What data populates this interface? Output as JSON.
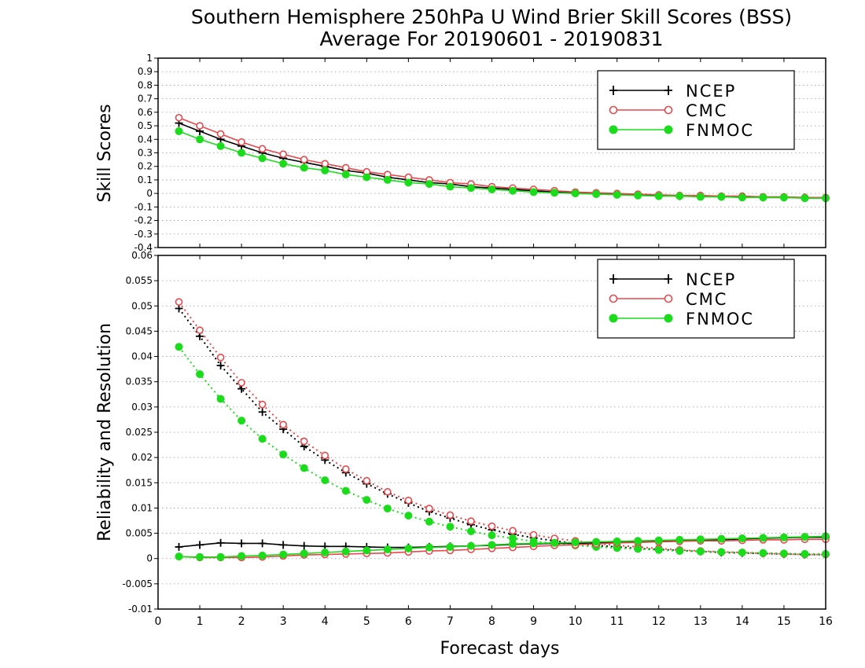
{
  "title_line1": "Southern Hemisphere 250hPa U Wind Brier Skill Scores (BSS)",
  "title_line2": "Average For 20190601 - 20190831",
  "colors": {
    "NCEP": "#000000",
    "CMC": "#e8474b",
    "FNMOC": "#1bdc1b"
  },
  "chart_data": [
    {
      "type": "line",
      "ylabel": "Skill Scores",
      "xlim": [
        0,
        16
      ],
      "ylim": [
        -0.4,
        1
      ],
      "yticks": [
        "1",
        "0.9",
        "0.8",
        "0.7",
        "0.6",
        "0.5",
        "0.4",
        "0.3",
        "0.2",
        "0.1",
        "0",
        "-0.1",
        "-0.2",
        "-0.3",
        "-0.4"
      ],
      "grid": true,
      "legend": [
        "NCEP",
        "CMC",
        "FNMOC"
      ],
      "legend_position": "top-right",
      "x": [
        0.5,
        1,
        1.5,
        2,
        2.5,
        3,
        3.5,
        4,
        4.5,
        5,
        5.5,
        6,
        6.5,
        7,
        7.5,
        8,
        8.5,
        9,
        9.5,
        10,
        10.5,
        11,
        11.5,
        12,
        12.5,
        13,
        13.5,
        14,
        14.5,
        15,
        15.5,
        16
      ],
      "series": [
        {
          "name": "NCEP",
          "marker": "plus",
          "line": "solid",
          "values": [
            0.52,
            0.46,
            0.4,
            0.35,
            0.3,
            0.26,
            0.23,
            0.2,
            0.17,
            0.15,
            0.12,
            0.1,
            0.08,
            0.07,
            0.05,
            0.04,
            0.03,
            0.02,
            0.01,
            0.005,
            0.0,
            -0.005,
            -0.01,
            -0.015,
            -0.02,
            -0.02,
            -0.025,
            -0.025,
            -0.03,
            -0.03,
            -0.03,
            -0.035
          ]
        },
        {
          "name": "CMC",
          "marker": "open-circle",
          "line": "solid",
          "values": [
            0.56,
            0.5,
            0.44,
            0.38,
            0.33,
            0.29,
            0.25,
            0.22,
            0.19,
            0.16,
            0.14,
            0.12,
            0.1,
            0.08,
            0.07,
            0.05,
            0.04,
            0.03,
            0.02,
            0.01,
            0.005,
            0.0,
            -0.005,
            -0.01,
            -0.015,
            -0.015,
            -0.02,
            -0.02,
            -0.025,
            -0.025,
            -0.03,
            -0.03
          ]
        },
        {
          "name": "FNMOC",
          "marker": "filled-circle",
          "line": "solid",
          "values": [
            0.46,
            0.4,
            0.35,
            0.3,
            0.26,
            0.22,
            0.19,
            0.17,
            0.14,
            0.12,
            0.1,
            0.08,
            0.07,
            0.05,
            0.04,
            0.03,
            0.02,
            0.01,
            0.005,
            0.0,
            -0.005,
            -0.01,
            -0.015,
            -0.02,
            -0.02,
            -0.025,
            -0.025,
            -0.03,
            -0.03,
            -0.03,
            -0.035,
            -0.035
          ]
        }
      ]
    },
    {
      "type": "line",
      "ylabel": "Reliability and Resolution",
      "xlabel": "Forecast days",
      "xlim": [
        0,
        16
      ],
      "xticks": [
        "0",
        "1",
        "2",
        "3",
        "4",
        "5",
        "6",
        "7",
        "8",
        "9",
        "10",
        "11",
        "12",
        "13",
        "14",
        "15",
        "16"
      ],
      "ylim": [
        -0.01,
        0.06
      ],
      "yticks": [
        "0.06",
        "0.055",
        "0.05",
        "0.045",
        "0.04",
        "0.035",
        "0.03",
        "0.025",
        "0.02",
        "0.015",
        "0.01",
        "0.005",
        "0",
        "-0.005",
        "-0.01"
      ],
      "grid": true,
      "legend": [
        "NCEP",
        "CMC",
        "FNMOC"
      ],
      "legend_position": "top-right",
      "x": [
        0.5,
        1,
        1.5,
        2,
        2.5,
        3,
        3.5,
        4,
        4.5,
        5,
        5.5,
        6,
        6.5,
        7,
        7.5,
        8,
        8.5,
        9,
        9.5,
        10,
        10.5,
        11,
        11.5,
        12,
        12.5,
        13,
        13.5,
        14,
        14.5,
        15,
        15.5,
        16
      ],
      "series": [
        {
          "name": "NCEP",
          "marker": "plus",
          "line": "dotted",
          "values": [
            0.0495,
            0.044,
            0.0382,
            0.0336,
            0.029,
            0.0256,
            0.0222,
            0.0195,
            0.017,
            0.0148,
            0.0128,
            0.011,
            0.0093,
            0.008,
            0.0067,
            0.0057,
            0.0048,
            0.0041,
            0.0035,
            0.003,
            0.0026,
            0.0023,
            0.002,
            0.0018,
            0.0016,
            0.0014,
            0.0012,
            0.0011,
            0.001,
            0.0009,
            0.0008,
            0.0008
          ]
        },
        {
          "name": "CMC",
          "marker": "open-circle",
          "line": "dotted",
          "values": [
            0.0508,
            0.0452,
            0.0398,
            0.0348,
            0.0305,
            0.0265,
            0.0232,
            0.0204,
            0.0177,
            0.0154,
            0.0132,
            0.0115,
            0.0099,
            0.0086,
            0.0074,
            0.0064,
            0.0055,
            0.0047,
            0.004,
            0.0035,
            0.003,
            0.0026,
            0.0023,
            0.002,
            0.0017,
            0.0015,
            0.0013,
            0.0012,
            0.001,
            0.0009,
            0.0008,
            0.0008
          ]
        },
        {
          "name": "FNMOC",
          "marker": "filled-circle",
          "line": "dotted",
          "values": [
            0.0419,
            0.0365,
            0.0316,
            0.0273,
            0.0237,
            0.0206,
            0.0179,
            0.0155,
            0.0134,
            0.0116,
            0.0099,
            0.0085,
            0.0073,
            0.0063,
            0.0054,
            0.0046,
            0.004,
            0.0034,
            0.003,
            0.0026,
            0.0023,
            0.0021,
            0.0019,
            0.0017,
            0.0015,
            0.0014,
            0.0013,
            0.0012,
            0.0011,
            0.001,
            0.0009,
            0.0009
          ]
        },
        {
          "name": "NCEP",
          "marker": "plus",
          "line": "solid",
          "values": [
            0.0023,
            0.0027,
            0.0031,
            0.003,
            0.003,
            0.0027,
            0.0025,
            0.0024,
            0.0024,
            0.0023,
            0.0022,
            0.0022,
            0.0023,
            0.0024,
            0.0025,
            0.0026,
            0.0028,
            0.0029,
            0.003,
            0.003,
            0.0031,
            0.0032,
            0.0033,
            0.0034,
            0.0035,
            0.0036,
            0.0037,
            0.0039,
            0.004,
            0.0041,
            0.0042,
            0.0042
          ]
        },
        {
          "name": "CMC",
          "marker": "open-circle",
          "line": "solid",
          "values": [
            0.0004,
            0.0002,
            0.0002,
            0.0002,
            0.0003,
            0.0005,
            0.0007,
            0.0008,
            0.0009,
            0.001,
            0.0011,
            0.0013,
            0.0015,
            0.0016,
            0.0018,
            0.002,
            0.0022,
            0.0024,
            0.0026,
            0.0027,
            0.0029,
            0.0031,
            0.0032,
            0.0033,
            0.0034,
            0.0035,
            0.0035,
            0.0036,
            0.0037,
            0.0037,
            0.0038,
            0.0038
          ]
        },
        {
          "name": "FNMOC",
          "marker": "filled-circle",
          "line": "solid",
          "values": [
            0.0004,
            0.0003,
            0.0003,
            0.0005,
            0.0006,
            0.0008,
            0.001,
            0.0012,
            0.0014,
            0.0016,
            0.0018,
            0.002,
            0.0022,
            0.0023,
            0.0025,
            0.0027,
            0.0029,
            0.003,
            0.0031,
            0.0032,
            0.0033,
            0.0034,
            0.0035,
            0.0036,
            0.0037,
            0.0038,
            0.0039,
            0.004,
            0.0041,
            0.0042,
            0.0043,
            0.0044
          ]
        }
      ]
    }
  ]
}
